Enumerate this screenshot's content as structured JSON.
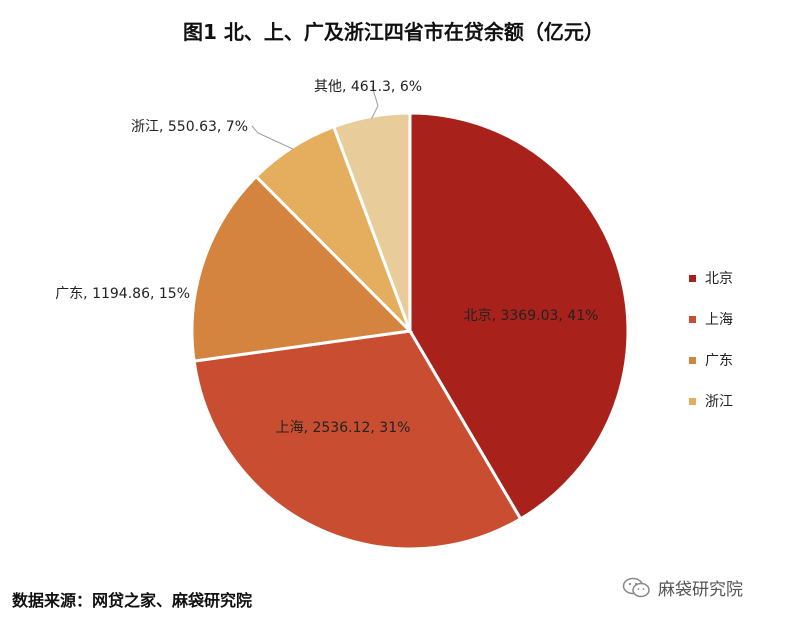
{
  "title": "图1  北、上、广及浙江四省市在贷余额（亿元）",
  "chart_data": {
    "type": "pie",
    "title": "图1  北、上、广及浙江四省市在贷余额（亿元）",
    "slices": [
      {
        "name": "北京",
        "value": 3369.03,
        "percent": "41%",
        "color": "#a8221b",
        "label": "北京, 3369.03, 41%"
      },
      {
        "name": "上海",
        "value": 2536.12,
        "percent": "31%",
        "color": "#c94e31",
        "label": "上海, 2536.12, 31%"
      },
      {
        "name": "广东",
        "value": 1194.86,
        "percent": "15%",
        "color": "#d4843f",
        "label": "广东, 1194.86, 15%"
      },
      {
        "name": "浙江",
        "value": 550.63,
        "percent": "7%",
        "color": "#e5ae5f",
        "label": "浙江, 550.63, 7%"
      },
      {
        "name": "其他",
        "value": 461.3,
        "percent": "6%",
        "color": "#e8cd9b",
        "label": "其他, 461.3, 6%"
      }
    ],
    "legend": {
      "placement": "right",
      "items": [
        "北京",
        "上海",
        "广东",
        "浙江"
      ]
    }
  },
  "footer": {
    "source": "数据来源：网贷之家、麻袋研究院",
    "watermark": "麻袋研究院",
    "watermark_icon": "wechat-icon"
  }
}
